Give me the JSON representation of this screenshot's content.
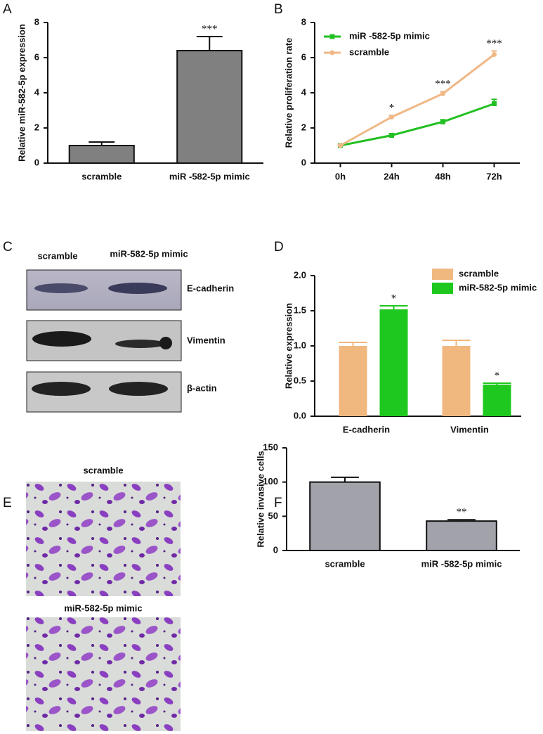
{
  "chart_data": [
    {
      "type": "bar",
      "label": "A",
      "ylabel": "Relative miR-582-5p  expression",
      "categories": [
        "scramble",
        "miR -582-5p mimic"
      ],
      "values": [
        1.0,
        6.4
      ],
      "errors": [
        0.2,
        0.8
      ],
      "significance": [
        null,
        "***"
      ],
      "color": "#808080",
      "ylim": [
        0,
        8
      ],
      "yticks": [
        0,
        2,
        4,
        6,
        8
      ]
    },
    {
      "type": "line",
      "label": "B",
      "ylabel": "Relative proliferation rate",
      "categories": [
        "0h",
        "24h",
        "48h",
        "72h"
      ],
      "series": [
        {
          "name": "miR -582-5p mimic",
          "color": "#22c022",
          "marker": "square",
          "values": [
            1.0,
            1.58,
            2.35,
            3.38
          ],
          "errors": [
            0.05,
            0.1,
            0.12,
            0.25
          ]
        },
        {
          "name": "scramble",
          "color": "#f0b887",
          "marker": "circle",
          "values": [
            1.0,
            2.62,
            3.95,
            6.18
          ],
          "errors": [
            0.05,
            0.1,
            0.12,
            0.2
          ]
        }
      ],
      "significance": [
        null,
        "*",
        "***",
        "***"
      ],
      "ylim": [
        0,
        8
      ],
      "yticks": [
        0,
        2,
        4,
        6,
        8
      ]
    },
    {
      "type": "bar",
      "label": "D",
      "ylabel": "Relative expression",
      "categories": [
        "E-cadherin",
        "Vimentin"
      ],
      "series": [
        {
          "name": "scramble",
          "color": "#f0b87f",
          "values": [
            1.0,
            1.0
          ],
          "errors": [
            0.05,
            0.08
          ]
        },
        {
          "name": "miR-582-5p mimic",
          "color": "#1ec81e",
          "values": [
            1.52,
            0.45
          ],
          "errors": [
            0.05,
            0.02
          ],
          "significance": [
            "*",
            "*"
          ]
        }
      ],
      "ylim": [
        0,
        2.0
      ],
      "yticks": [
        {
          "value": 0,
          "label": "0.0"
        },
        {
          "value": 0.5,
          "label": "0.5"
        },
        {
          "value": 1,
          "label": "1.0"
        },
        {
          "value": 1.5,
          "label": "1.5"
        },
        {
          "value": 2,
          "label": "2.0"
        }
      ]
    },
    {
      "type": "bar",
      "label": "F",
      "ylabel": "Relative invasive cells",
      "categories": [
        "scramble",
        "miR -582-5p mimic"
      ],
      "values": [
        100,
        43
      ],
      "errors": [
        7,
        2
      ],
      "significance": [
        null,
        "**"
      ],
      "color": "#a2a2aa",
      "ylim": [
        0,
        150
      ],
      "yticks": [
        0,
        50,
        100,
        150
      ]
    }
  ],
  "blot": {
    "label": "C",
    "columns": [
      "scramble",
      "miR-582-5p mimic"
    ],
    "rows": [
      "E-cadherin",
      "Vimentin",
      "β-actin"
    ]
  },
  "micrographs": {
    "label": "E",
    "captions": [
      "scramble",
      "miR-582-5p mimic"
    ]
  }
}
